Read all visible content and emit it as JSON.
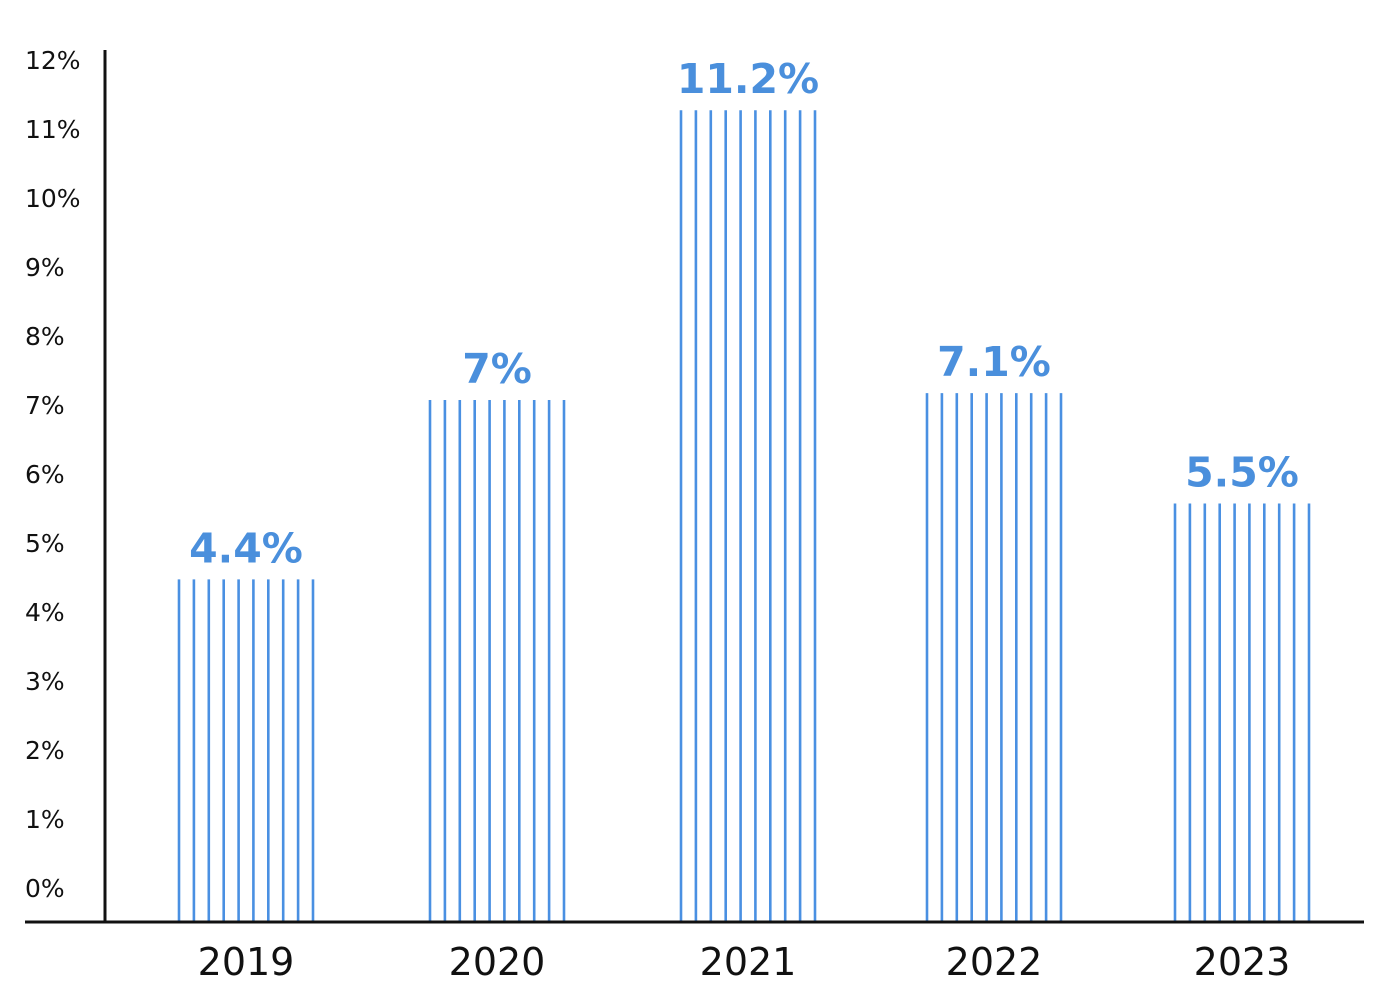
{
  "chart_data": {
    "type": "bar",
    "categories": [
      "2019",
      "2020",
      "2021",
      "2022",
      "2023"
    ],
    "values": [
      4.4,
      7.0,
      11.2,
      7.1,
      5.5
    ],
    "data_labels": [
      "4.4%",
      "7%",
      "11.2%",
      "7.1%",
      "5.5%"
    ],
    "y_ticks": [
      "0%",
      "1%",
      "2%",
      "3%",
      "4%",
      "5%",
      "6%",
      "7%",
      "8%",
      "9%",
      "10%",
      "11%",
      "12%"
    ],
    "ylim": [
      0,
      12
    ],
    "bar_style": "vertical-hatch",
    "bar_color": "#4a90e2",
    "label_color": "#4a8fdc",
    "axis_color": "#111111",
    "grid": false,
    "legend": "none"
  }
}
